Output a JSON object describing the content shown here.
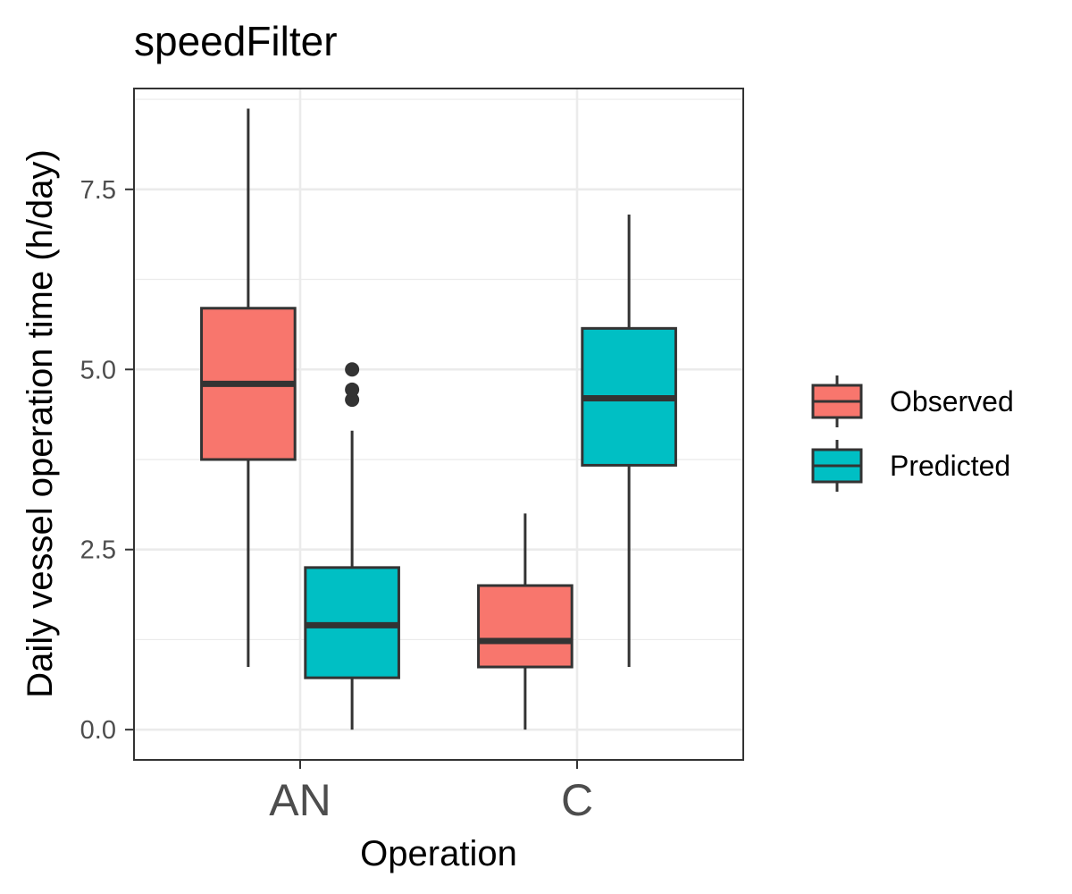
{
  "chart_data": {
    "type": "boxplot",
    "title": "speedFilter",
    "xlabel": "Operation",
    "ylabel": "Daily vessel operation time (h/day)",
    "categories": [
      "AN",
      "C"
    ],
    "ylim": [
      -0.42,
      8.9
    ],
    "yticks": [
      0.0,
      2.5,
      5.0,
      7.5
    ],
    "ytick_labels": [
      "0.0",
      "2.5",
      "5.0",
      "7.5"
    ],
    "grid": true,
    "legend_position": "right",
    "series": [
      {
        "name": "Observed",
        "color": "#F8766D",
        "boxes": [
          {
            "category": "AN",
            "min": 0.87,
            "q1": 3.75,
            "median": 4.8,
            "q3": 5.85,
            "max": 8.62,
            "outliers": []
          },
          {
            "category": "C",
            "min": 0.0,
            "q1": 0.87,
            "median": 1.23,
            "q3": 2.0,
            "max": 3.0,
            "outliers": []
          }
        ]
      },
      {
        "name": "Predicted",
        "color": "#00BFC4",
        "boxes": [
          {
            "category": "AN",
            "min": 0.0,
            "q1": 0.72,
            "median": 1.45,
            "q3": 2.25,
            "max": 4.15,
            "outliers": [
              4.58,
              4.72,
              5.0
            ]
          },
          {
            "category": "C",
            "min": 0.87,
            "q1": 3.67,
            "median": 4.6,
            "q3": 5.57,
            "max": 7.15,
            "outliers": []
          }
        ]
      }
    ]
  }
}
